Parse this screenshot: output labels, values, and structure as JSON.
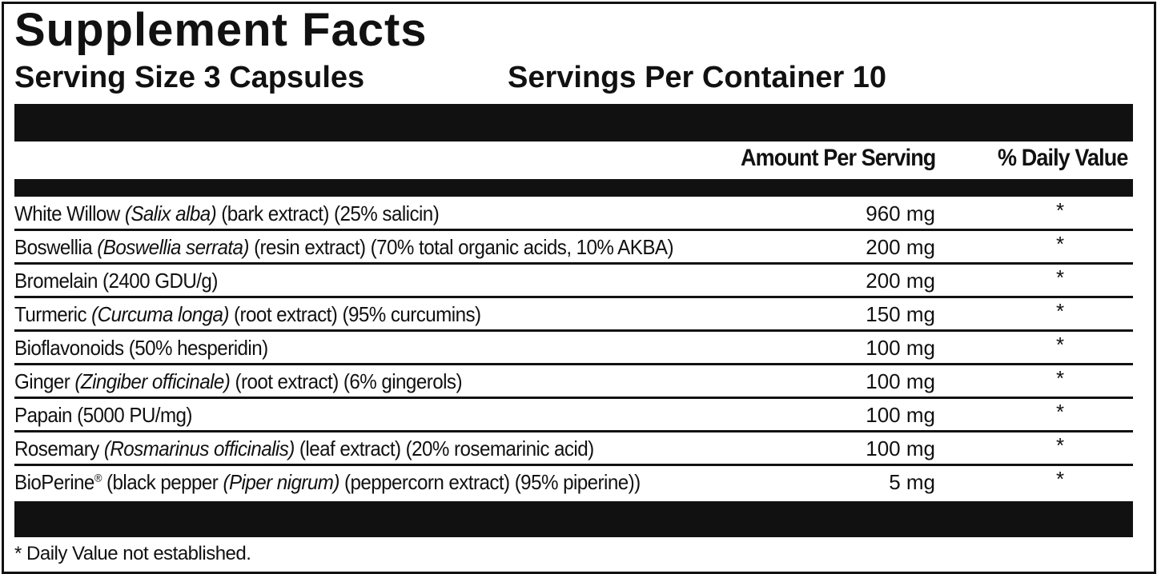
{
  "title": "Supplement Facts",
  "serving_size": "Serving Size 3 Capsules",
  "servings_per_container": "Servings Per Container 10",
  "columns": {
    "amount": "Amount Per Serving",
    "daily_value": "% Daily Value"
  },
  "rows": [
    {
      "segments": [
        {
          "t": "White Willow "
        },
        {
          "t": "(Salix alba)",
          "i": true
        },
        {
          "t": " (bark extract) (25% salicin)"
        }
      ],
      "amount": "960 mg",
      "dv": "*"
    },
    {
      "segments": [
        {
          "t": "Boswellia "
        },
        {
          "t": "(Boswellia serrata)",
          "i": true
        },
        {
          "t": " (resin extract) (70% total organic acids, 10% AKBA)"
        }
      ],
      "amount": "200 mg",
      "dv": "*"
    },
    {
      "segments": [
        {
          "t": "Bromelain (2400 GDU/g)"
        }
      ],
      "amount": "200 mg",
      "dv": "*"
    },
    {
      "segments": [
        {
          "t": "Turmeric "
        },
        {
          "t": "(Curcuma longa)",
          "i": true
        },
        {
          "t": " (root extract) (95% curcumins)"
        }
      ],
      "amount": "150 mg",
      "dv": "*"
    },
    {
      "segments": [
        {
          "t": "Bioflavonoids (50% hesperidin)"
        }
      ],
      "amount": "100 mg",
      "dv": "*"
    },
    {
      "segments": [
        {
          "t": "Ginger "
        },
        {
          "t": "(Zingiber officinale)",
          "i": true
        },
        {
          "t": " (root extract) (6% gingerols)"
        }
      ],
      "amount": "100 mg",
      "dv": "*"
    },
    {
      "segments": [
        {
          "t": "Papain (5000 PU/mg)"
        }
      ],
      "amount": "100 mg",
      "dv": "*"
    },
    {
      "segments": [
        {
          "t": "Rosemary "
        },
        {
          "t": "(Rosmarinus officinalis)",
          "i": true
        },
        {
          "t": " (leaf extract) (20% rosemarinic acid)"
        }
      ],
      "amount": "100 mg",
      "dv": "*"
    },
    {
      "segments": [
        {
          "t": "BioPerine"
        },
        {
          "t": "®",
          "sup": true
        },
        {
          "t": " (black pepper "
        },
        {
          "t": "(Piper nigrum)",
          "i": true
        },
        {
          "t": " (peppercorn extract) (95% piperine))"
        }
      ],
      "amount": "5 mg",
      "dv": "*"
    }
  ],
  "footnote": "* Daily Value not established."
}
